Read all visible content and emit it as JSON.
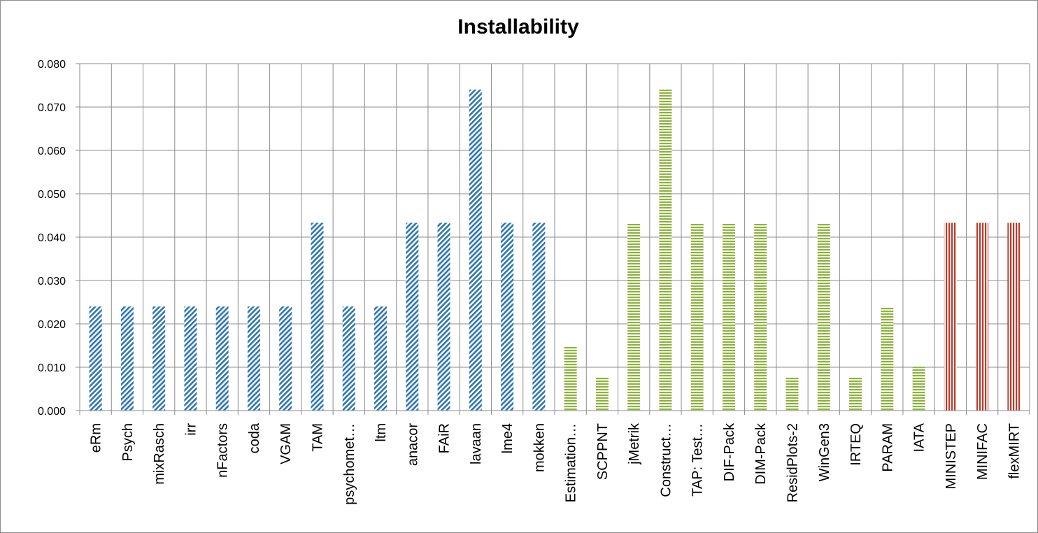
{
  "chart_data": {
    "type": "bar",
    "title": "Installability",
    "xlabel": "",
    "ylabel": "",
    "ylim": [
      0,
      0.08
    ],
    "yticks": [
      "0.000",
      "0.010",
      "0.020",
      "0.030",
      "0.040",
      "0.050",
      "0.060",
      "0.070",
      "0.080"
    ],
    "grid": true,
    "legend": "none",
    "categories": [
      "eRm",
      "Psych",
      "mixRasch",
      "irr",
      "nFactors",
      "coda",
      "VGAM",
      "TAM",
      "psychomet…",
      "ltm",
      "anacor",
      "FAiR",
      "lavaan",
      "lme4",
      "mokken",
      "Estimation…",
      "SCPPNT",
      "jMetrik",
      "Construct…",
      "TAP: Test…",
      "DIF-Pack",
      "DIM-Pack",
      "ResidPlots-2",
      "WinGen3",
      "IRTEQ",
      "PARAM",
      "IATA",
      "MINISTEP",
      "MINIFAC",
      "flexMIRT"
    ],
    "values": [
      0.024,
      0.024,
      0.024,
      0.024,
      0.024,
      0.024,
      0.024,
      0.0433,
      0.024,
      0.024,
      0.0433,
      0.0433,
      0.074,
      0.0433,
      0.0433,
      0.0148,
      0.0076,
      0.0431,
      0.074,
      0.0431,
      0.0431,
      0.0431,
      0.0076,
      0.0431,
      0.0076,
      0.0238,
      0.0101,
      0.0433,
      0.0433,
      0.0433
    ],
    "groups": [
      0,
      0,
      0,
      0,
      0,
      0,
      0,
      0,
      0,
      0,
      0,
      0,
      0,
      0,
      0,
      1,
      1,
      1,
      1,
      1,
      1,
      1,
      1,
      1,
      1,
      1,
      1,
      2,
      2,
      2
    ],
    "group_styles": [
      {
        "pattern": "diagonal-stripes",
        "color": "#2e75b6"
      },
      {
        "pattern": "horizontal-stripes",
        "color": "#8db33c"
      },
      {
        "pattern": "vertical-stripes",
        "color": "#c0392b"
      }
    ]
  }
}
